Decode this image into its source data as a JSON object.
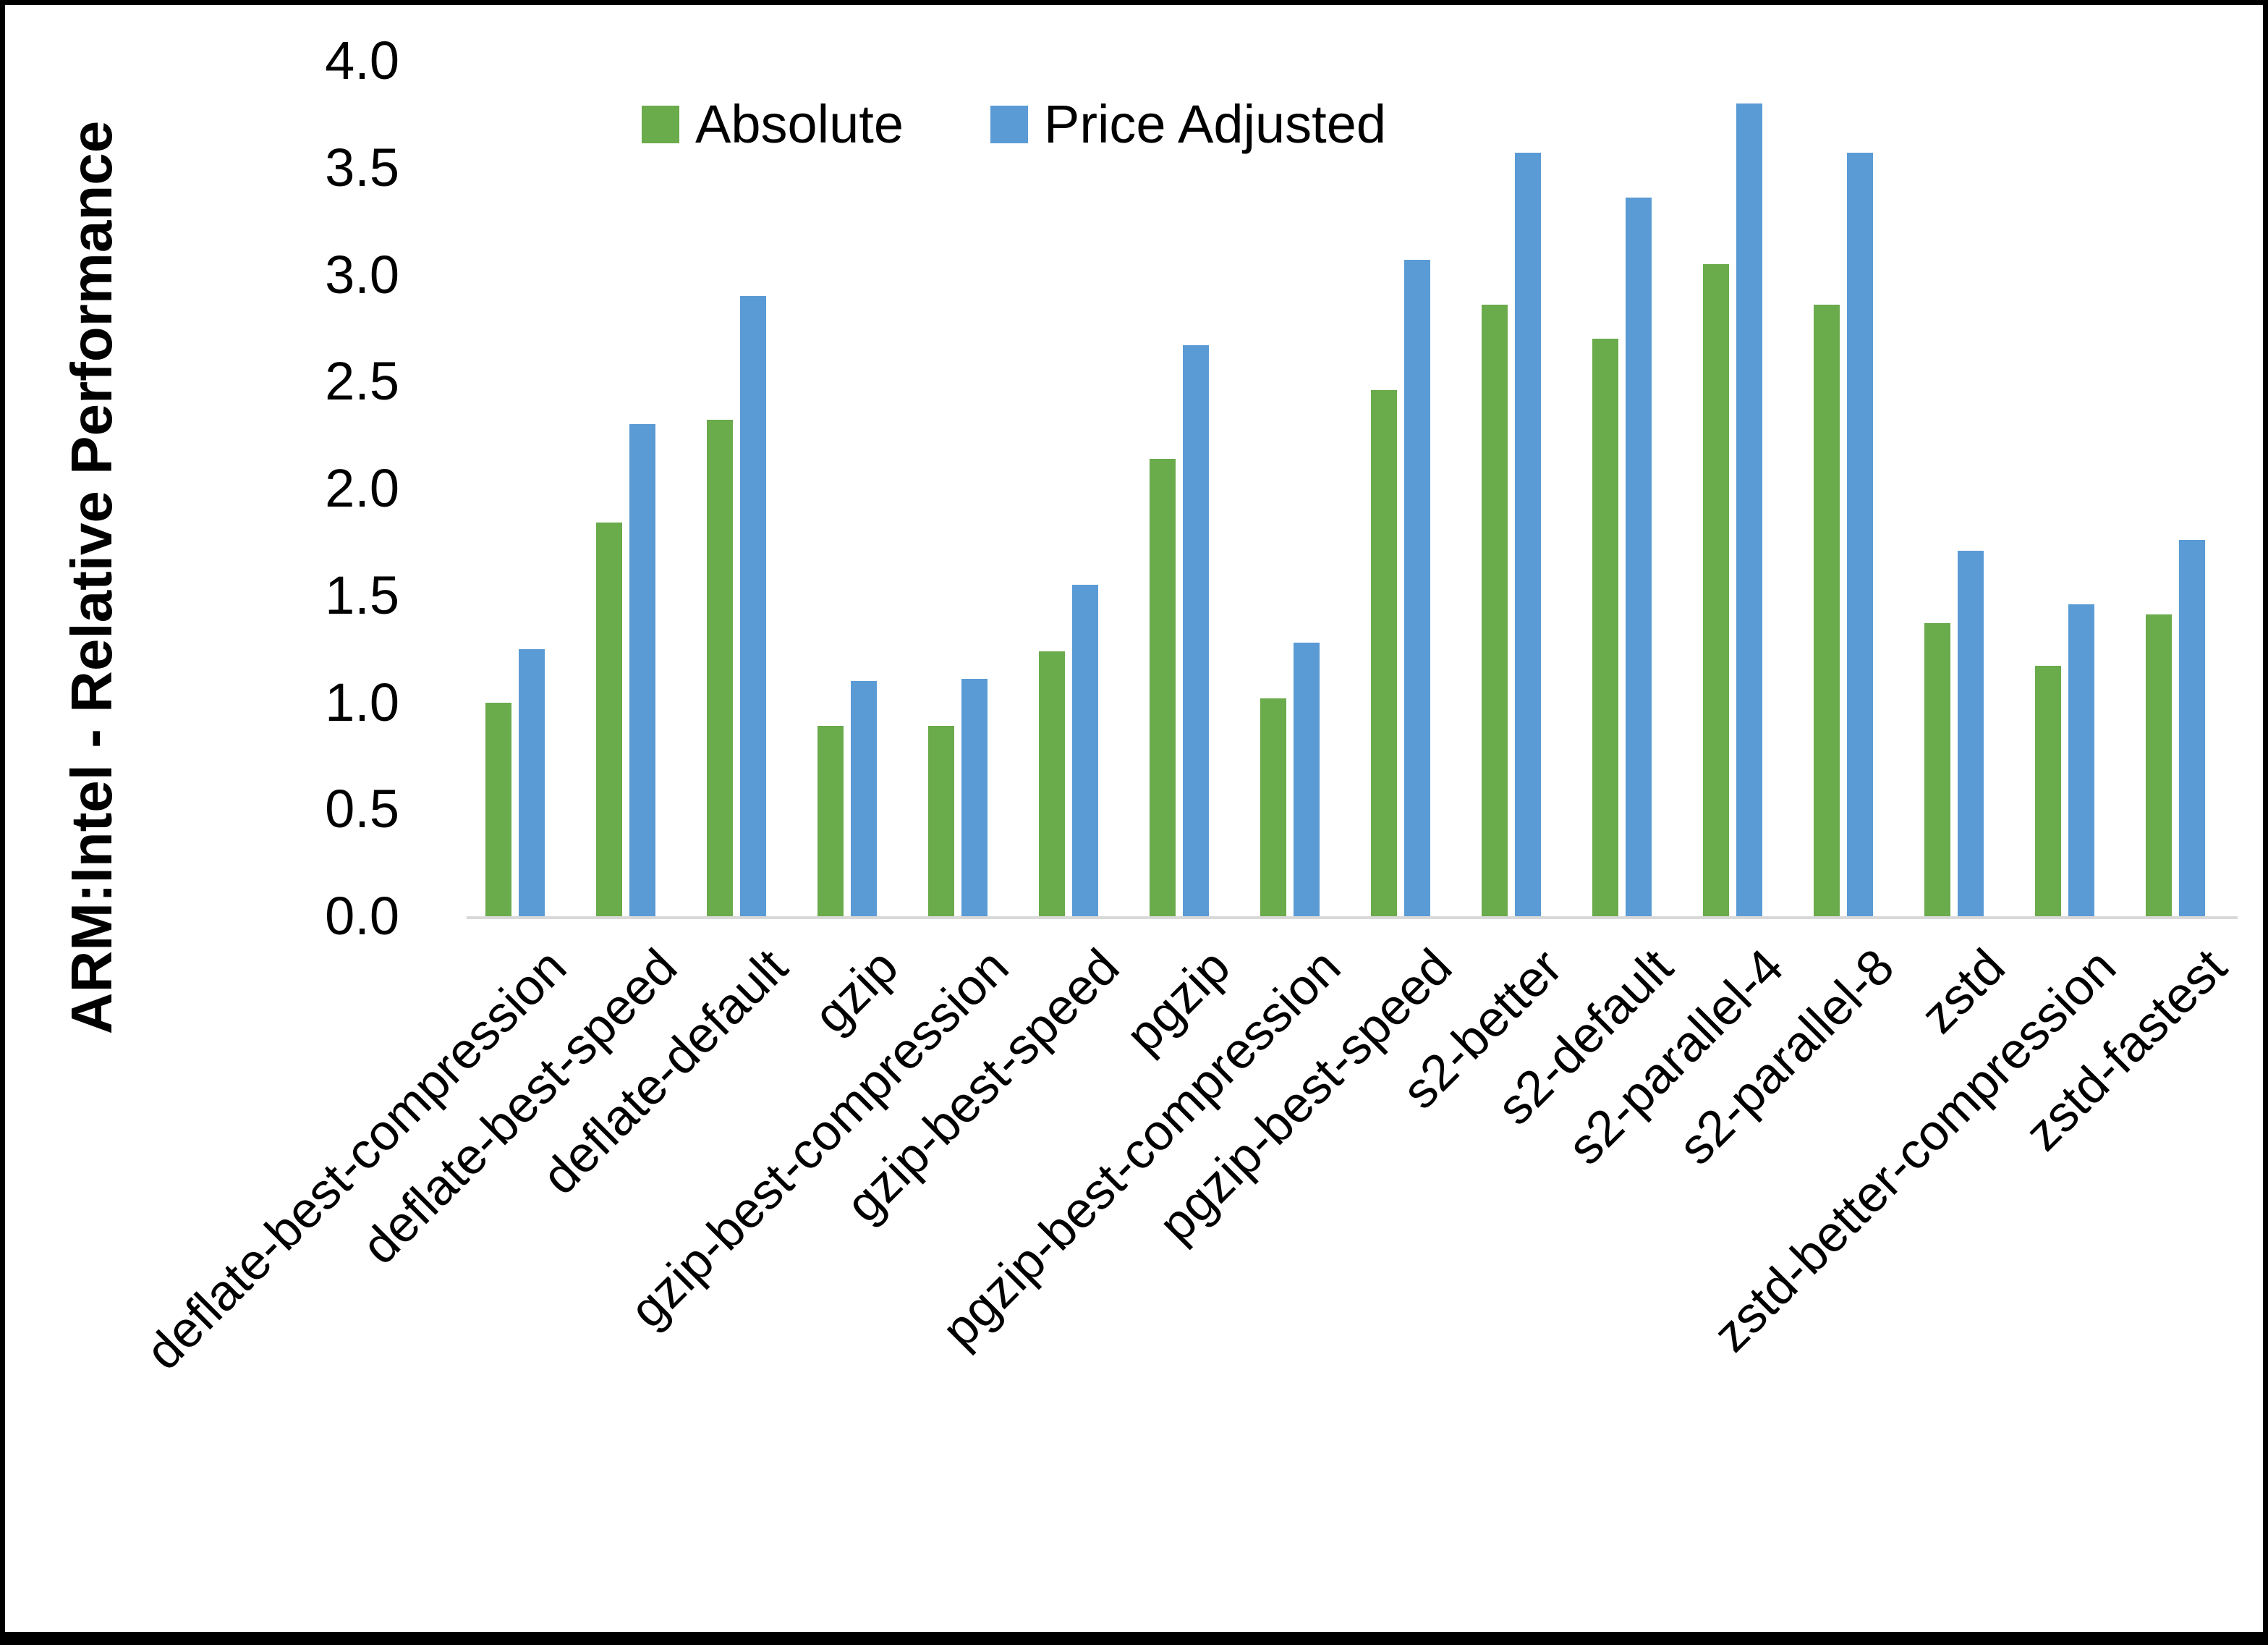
{
  "chart_data": {
    "type": "bar",
    "title": "",
    "xlabel": "",
    "ylabel": "ARM:Intel - Relative Performance",
    "ylim": [
      0.0,
      4.0
    ],
    "ytick_step": 0.5,
    "ytick_labels": [
      "4.0",
      "3.5",
      "3.0",
      "2.5",
      "2.0",
      "1.5",
      "1.0",
      "0.5",
      "0.0"
    ],
    "grid": false,
    "legend_position": "top-center",
    "categories": [
      "deflate-best-compression",
      "deflate-best-speed",
      "deflate-default",
      "gzip",
      "gzip-best-compression",
      "gzip-best-speed",
      "pgzip",
      "pgzip-best-compression",
      "pgzip-best-speed",
      "s2-better",
      "s2-default",
      "s2-parallel-4",
      "s2-parallel-8",
      "zstd",
      "zstd-better-compression",
      "zstd-fastest"
    ],
    "series": [
      {
        "name": "Absolute",
        "color": "#6aab4c",
        "values": [
          1.0,
          1.84,
          2.32,
          0.89,
          0.89,
          1.24,
          2.14,
          1.02,
          2.46,
          2.86,
          2.7,
          3.05,
          2.86,
          1.37,
          1.17,
          1.41
        ]
      },
      {
        "name": "Price Adjusted",
        "color": "#5b9bd5",
        "values": [
          1.25,
          2.3,
          2.9,
          1.1,
          1.11,
          1.55,
          2.67,
          1.28,
          3.07,
          3.57,
          3.36,
          3.8,
          3.57,
          1.71,
          1.46,
          1.76
        ]
      }
    ]
  },
  "frame": {
    "border_color": "#000000",
    "background": "#ffffff",
    "axis_line_color": "#d9d9d9",
    "text_color": "#000000"
  }
}
